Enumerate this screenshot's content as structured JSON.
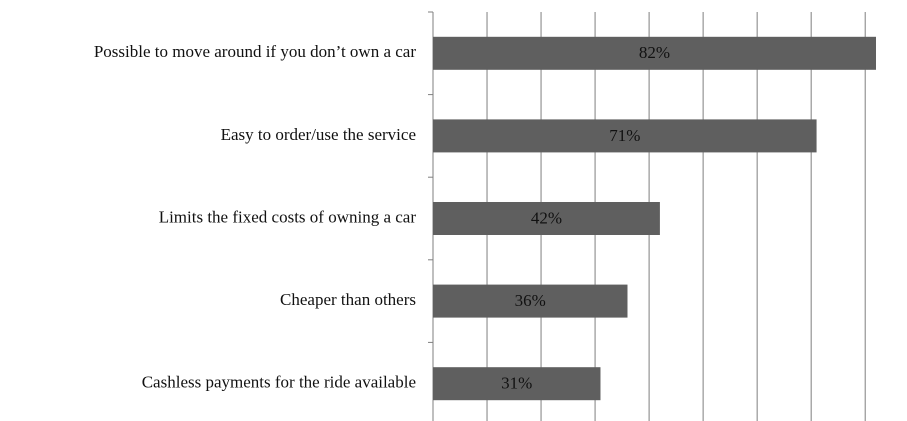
{
  "chart_data": {
    "type": "hbar",
    "categories": [
      "Possible to move around if you don’t own a car",
      "Easy to order/use the service",
      "Limits the fixed costs of owning a car",
      "Cheaper than others",
      "Cashless payments for the ride available"
    ],
    "values": [
      82,
      71,
      42,
      36,
      31
    ],
    "value_labels": [
      "82%",
      "71%",
      "42%",
      "36%",
      "31%"
    ],
    "color": "#5f5f5f",
    "xlim": [
      0,
      82
    ],
    "xticks": [
      0,
      10,
      20,
      30,
      40,
      50,
      60,
      70,
      80
    ],
    "grid": true
  }
}
